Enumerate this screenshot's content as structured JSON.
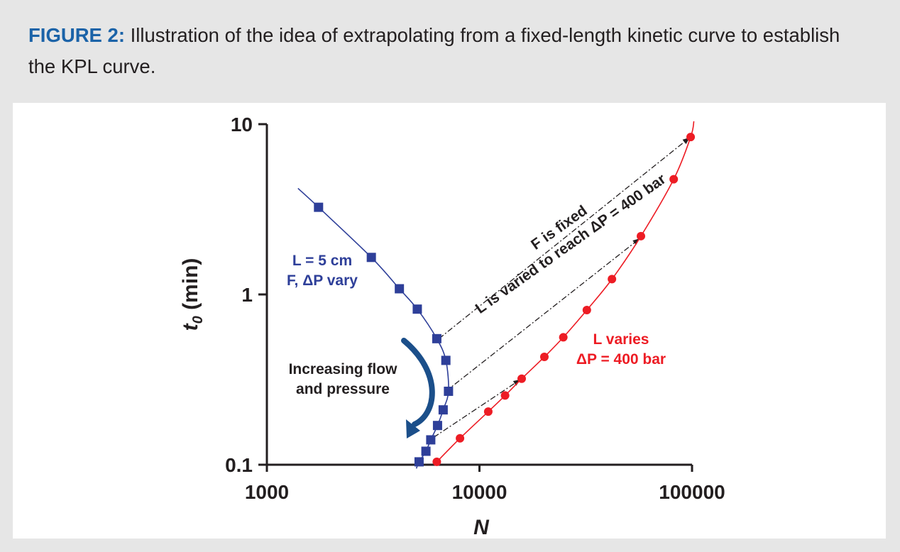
{
  "caption": {
    "lead": "FIGURE 2:",
    "text": " Illustration of the idea of extrapolating from a fixed-length kinetic curve to establish the KPL curve."
  },
  "chart_data": {
    "type": "scatter",
    "xscale": "log",
    "yscale": "log",
    "xlabel": "N",
    "ylabel_main": "t",
    "ylabel_sub": "0",
    "ylabel_unit": " (min)",
    "xlim": [
      1000,
      100000
    ],
    "ylim": [
      0.1,
      10
    ],
    "x_ticks": [
      "1000",
      "10000",
      "100000"
    ],
    "y_ticks": [
      "0.1",
      "1",
      "10"
    ],
    "colors": {
      "series1": "#2e3f99",
      "series2": "#ed1c24",
      "text": "#231f20",
      "accent": "#1b63a8",
      "arrow": "#1b4f8a"
    },
    "series": [
      {
        "x": [
          1750,
          3100,
          4200,
          5100,
          6300,
          6950,
          7150,
          6750,
          6350,
          5900,
          5600,
          5200
        ],
        "y": [
          3.25,
          1.65,
          1.08,
          0.82,
          0.55,
          0.41,
          0.27,
          0.21,
          0.17,
          0.14,
          0.12,
          0.104
        ],
        "marker": "square",
        "label_lines": [
          "L = 5 cm",
          "F, ΔP vary"
        ]
      },
      {
        "x": [
          6300,
          8100,
          11000,
          13200,
          15800,
          20200,
          24800,
          32000,
          42000,
          57500,
          82000,
          98500
        ],
        "y": [
          0.104,
          0.143,
          0.205,
          0.255,
          0.32,
          0.43,
          0.56,
          0.81,
          1.23,
          2.2,
          4.75,
          8.4
        ],
        "marker": "circle",
        "label_lines": [
          "L varies",
          "ΔP = 400 bar"
        ]
      }
    ],
    "annotations": {
      "flow_lines": [
        "Increasing flow",
        "and pressure"
      ],
      "fixed_lines": [
        "F is fixed",
        "L is varied to reach ΔP = 400 bar"
      ]
    },
    "extrapolation_arrows": [
      {
        "from": [
          6450,
          0.55
        ],
        "to": [
          97000,
          8.3
        ]
      },
      {
        "from": [
          6950,
          0.27
        ],
        "to": [
          56500,
          2.12
        ]
      },
      {
        "from": [
          6100,
          0.145
        ],
        "to": [
          15500,
          0.315
        ]
      }
    ],
    "grid": false,
    "legend": "none"
  }
}
